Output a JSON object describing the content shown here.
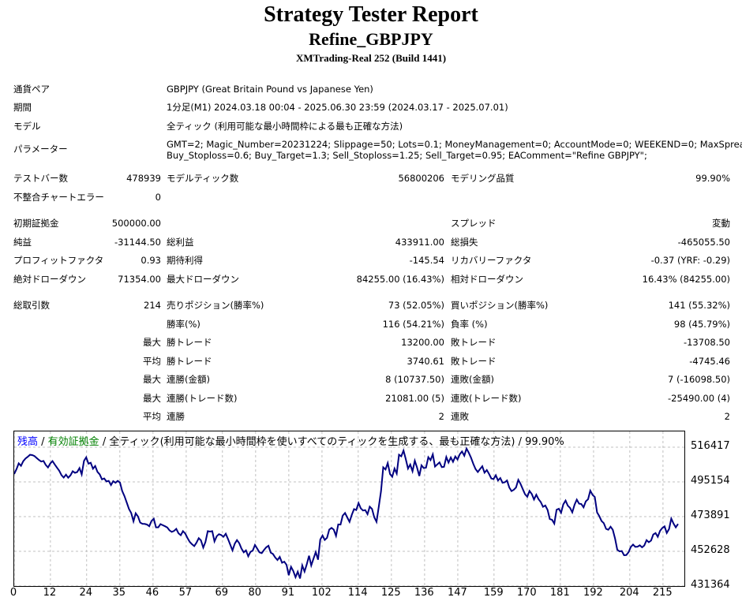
{
  "header": {
    "title": "Strategy Tester Report",
    "subtitle": "Refine_GBPJPY",
    "server": "XMTrading-Real 252 (Build 1441)"
  },
  "info": {
    "pair_label": "通貨ペア",
    "pair_value": "GBPJPY (Great Britain Pound vs Japanese Yen)",
    "period_label": "期間",
    "period_value": "1分足(M1) 2024.03.18 00:04 - 2025.06.30 23:59 (2024.03.17 - 2025.07.01)",
    "model_label": "モデル",
    "model_value": "全ティック (利用可能な最小時間枠による最も正確な方法)",
    "params_label": "パラメーター",
    "params_line1": "GMT=2; Magic_Number=20231224; Slippage=50; Lots=0.1; MoneyManagement=0; AccountMode=0; WEEKEND=0; MaxSpread=100;",
    "params_line2": "Buy_Stoploss=0.6; Buy_Target=1.3; Sell_Stoploss=1.25; Sell_Target=0.95; EAComment=\"Refine GBPJPY\";"
  },
  "stats": {
    "bars_label": "テストバー数",
    "bars_value": "478939",
    "ticks_label": "モデルティック数",
    "ticks_value": "56800206",
    "quality_label": "モデリング品質",
    "quality_value": "99.90%",
    "mismatch_label": "不整合チャートエラー",
    "mismatch_value": "0",
    "deposit_label": "初期証拠金",
    "deposit_value": "500000.00",
    "spread_label": "スプレッド",
    "spread_value": "変動",
    "net_label": "純益",
    "net_value": "-31144.50",
    "gross_profit_label": "総利益",
    "gross_profit_value": "433911.00",
    "gross_loss_label": "総損失",
    "gross_loss_value": "-465055.50",
    "pf_label": "プロフィットファクタ",
    "pf_value": "0.93",
    "expected_label": "期待利得",
    "expected_value": "-145.54",
    "recovery_label": "リカバリーファクタ",
    "recovery_value": "-0.37 (YRF: -0.29)",
    "abs_dd_label": "絶対ドローダウン",
    "abs_dd_value": "71354.00",
    "max_dd_label": "最大ドローダウン",
    "max_dd_value": "84255.00 (16.43%)",
    "rel_dd_label": "相対ドローダウン",
    "rel_dd_value": "16.43% (84255.00)",
    "trades_label": "総取引数",
    "trades_value": "214",
    "short_label": "売りポジション(勝率%)",
    "short_value": "73 (52.05%)",
    "long_label": "買いポジション(勝率%)",
    "long_value": "141 (55.32%)",
    "win_label": "勝率(%)",
    "win_value": "116 (54.21%)",
    "loss_label": "負率 (%)",
    "loss_value": "98 (45.79%)",
    "max_label": "最大",
    "avg_label": "平均",
    "max_win_label": "勝トレード",
    "max_win_value": "13200.00",
    "max_loss_label": "敗トレード",
    "max_loss_value": "-13708.50",
    "avg_win_label": "勝トレード",
    "avg_win_value": "3740.61",
    "avg_loss_label": "敗トレード",
    "avg_loss_value": "-4745.46",
    "consec_win_money_label": "連勝(金額)",
    "consec_win_money_value": "8 (10737.50)",
    "consec_loss_money_label": "連敗(金額)",
    "consec_loss_money_value": "7 (-16098.50)",
    "consec_win_trades_label": "連勝(トレード数)",
    "consec_win_trades_value": "21081.00 (5)",
    "consec_loss_trades_label": "連敗(トレード数)",
    "consec_loss_trades_value": "-25490.00 (4)",
    "avg_consec_win_label": "連勝",
    "avg_consec_win_value": "2",
    "avg_consec_loss_label": "連敗",
    "avg_consec_loss_value": "2"
  },
  "legend": {
    "balance": "残高",
    "sep1": " / ",
    "equity": "有効証拠金",
    "sep2": " / ",
    "rest": "全ティック(利用可能な最小時間枠を使いすべてのティックを生成する、最も正確な方法) / 99.90%",
    "balance_color": "#0000ff",
    "equity_color": "#008000"
  },
  "chart_data": {
    "type": "line",
    "title": "",
    "xlabel": "",
    "ylabel": "",
    "x_ticks": [
      "0",
      "12",
      "24",
      "35",
      "46",
      "57",
      "69",
      "80",
      "91",
      "102",
      "114",
      "125",
      "136",
      "147",
      "159",
      "170",
      "181",
      "192",
      "204",
      "215"
    ],
    "y_ticks": [
      "516417",
      "495154",
      "473891",
      "452628",
      "431364"
    ],
    "ylim": [
      431364,
      516417
    ],
    "xlim": [
      0,
      220
    ],
    "grid": true,
    "line_color": "#000080",
    "series": [
      {
        "values": [
          500000,
          503000,
          506500,
          505000,
          507800,
          509500,
          510500,
          511800,
          511600,
          511000,
          509800,
          508600,
          507600,
          508000,
          505600,
          504000,
          506400,
          507900,
          505900,
          503900,
          502000,
          499300,
          497800,
          499600,
          497700,
          499200,
          501700,
          500700,
          501200,
          503600,
          499800,
          508000,
          510200,
          506300,
          506900,
          503200,
          504900,
          501300,
          499800,
          496700,
          497300,
          495400,
          495800,
          493200,
          495600,
          494600,
          495800,
          494700,
          489600,
          486400,
          482600,
          478600,
          476100,
          471000,
          475900,
          474000,
          470200,
          469500,
          469400,
          469000,
          468000,
          471200,
          472600,
          467300,
          467300,
          469300,
          468600,
          468000,
          467200,
          465500,
          464500,
          465100,
          466400,
          463700,
          462500,
          465000,
          463500,
          460800,
          458400,
          457000,
          455800,
          457900,
          460700,
          459300,
          454900,
          458400,
          465000,
          464700,
          465000,
          458700,
          461900,
          463100,
          462600,
          461500,
          463400,
          460200,
          456700,
          453200,
          457300,
          459500,
          457600,
          454300,
          452000,
          453200,
          449600,
          452300,
          453100,
          456500,
          454200,
          452000,
          451500,
          453400,
          455100,
          456000,
          451800,
          451000,
          448800,
          447300,
          449200,
          445600,
          446300,
          444300,
          438000,
          443100,
          440600,
          436800,
          440100,
          436000,
          444000,
          440200,
          444600,
          449900,
          444000,
          448200,
          452200,
          447500,
          459800,
          462300,
          459600,
          460900,
          465900,
          467000,
          465900,
          462100,
          469100,
          469000,
          474500,
          476100,
          473400,
          470700,
          474900,
          478500,
          477900,
          482200,
          479000,
          477600,
          477900,
          475400,
          480000,
          478600,
          473500,
          470700,
          479800,
          489500,
          504100,
          502800,
          506700,
          500000,
          498300,
          503300,
          500300,
          511800,
          510800,
          514400,
          509200,
          503300,
          505800,
          501700,
          508100,
          504000,
          498800,
          505300,
          503600,
          503900,
          510300,
          508500,
          512000,
          504600,
          505900,
          507100,
          504200,
          504400,
          510400,
          507000,
          510100,
          507500,
          510700,
          508900,
          512100,
          513800,
          511200,
          515600,
          513000,
          510000,
          506200,
          503100,
          501200,
          503000,
          504700,
          500800,
          502400,
          500100,
          497300,
          496900,
          499200,
          496000,
          497500,
          494600,
          494900,
          496000,
          491700,
          489500,
          490300,
          491700,
          496400,
          494000,
          490700,
          487600,
          486000,
          489600,
          487700,
          484400,
          487300,
          484600,
          482800,
          479900,
          480700,
          478000,
          472400,
          471900,
          469600,
          478100,
          478700,
          476300,
          481400,
          483700,
          480600,
          479200,
          476500,
          481200,
          484300,
          481800,
          481600,
          479600,
          483200,
          484500,
          489800,
          487200,
          485900,
          476500,
          474200,
          471200,
          469900,
          466400,
          465800,
          467700,
          465800,
          460400,
          453600,
          452600,
          452800,
          450200,
          450300,
          452100,
          455300,
          456800,
          455400,
          455500,
          456300,
          455100,
          456200,
          459500,
          458200,
          459200,
          462900,
          463800,
          461500,
          465200,
          466900,
          467900,
          463900,
          466300,
          472700,
          469600,
          467300,
          469400
        ]
      }
    ]
  }
}
